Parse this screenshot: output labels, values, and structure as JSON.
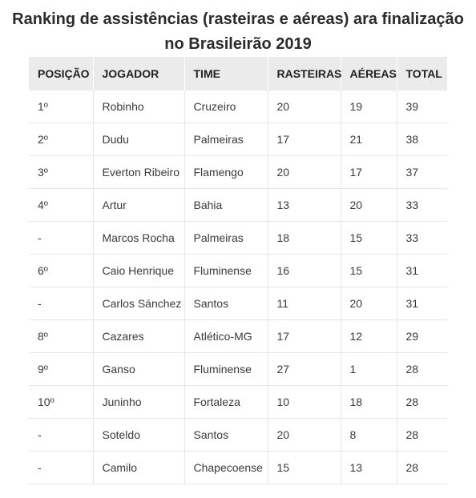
{
  "title": "Ranking de assistências (rasteiras e aéreas) ara finalização no Brasileirão 2019",
  "table": {
    "headers": [
      "POSIÇÃO",
      "JOGADOR",
      "TIME",
      "RASTEIRAS",
      "AÉREAS",
      "TOTAL"
    ],
    "rows": [
      [
        "1º",
        "Robinho",
        "Cruzeiro",
        "20",
        "19",
        "39"
      ],
      [
        "2º",
        "Dudu",
        "Palmeiras",
        "17",
        "21",
        "38"
      ],
      [
        "3º",
        "Everton Ribeiro",
        "Flamengo",
        "20",
        "17",
        "37"
      ],
      [
        "4º",
        "Artur",
        "Bahia",
        "13",
        "20",
        "33"
      ],
      [
        "-",
        "Marcos Rocha",
        "Palmeiras",
        "18",
        "15",
        "33"
      ],
      [
        "6º",
        "Caio Henrique",
        "Fluminense",
        "16",
        "15",
        "31"
      ],
      [
        "-",
        "Carlos Sánchez",
        "Santos",
        "11",
        "20",
        "31"
      ],
      [
        "8º",
        "Cazares",
        "Atlético-MG",
        "17",
        "12",
        "29"
      ],
      [
        "9º",
        "Ganso",
        "Fluminense",
        "27",
        "1",
        "28"
      ],
      [
        "10º",
        "Juninho",
        "Fortaleza",
        "10",
        "18",
        "28"
      ],
      [
        "-",
        "Soteldo",
        "Santos",
        "20",
        "8",
        "28"
      ],
      [
        "-",
        "Camilo",
        "Chapecoense",
        "15",
        "13",
        "28"
      ]
    ]
  }
}
